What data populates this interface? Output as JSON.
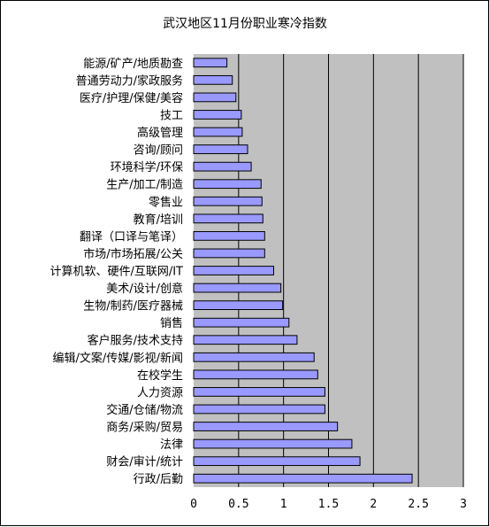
{
  "chart_data": {
    "type": "bar",
    "orientation": "horizontal",
    "title": "武汉地区11月份职业寒冷指数",
    "xlabel": "",
    "ylabel": "",
    "xlim": [
      0,
      3
    ],
    "x_ticks": [
      "0",
      "0.5",
      "1",
      "1.5",
      "2",
      "2.5",
      "3"
    ],
    "grid": "vertical lines at each major tick",
    "colors": {
      "plot_background": "#c0c0c0",
      "bar_fill": "#9999ff",
      "bar_stroke": "#000000",
      "gridline": "#000000"
    },
    "categories": [
      "能源/矿产/地质勘查",
      "普通劳动力/家政服务",
      "医疗/护理/保健/美容",
      "技工",
      "高级管理",
      "咨询/顾问",
      "环境科学/环保",
      "生产/加工/制造",
      "零售业",
      "教育/培训",
      "翻译（口译与笔译）",
      "市场/市场拓展/公关",
      "计算机软、硬件/互联网/IT",
      "美术/设计/创意",
      "生物/制药/医疗器械",
      "销售",
      "客户服务/技术支持",
      "编辑/文案/传媒/影视/新闻",
      "在校学生",
      "人力资源",
      "交通/仓储/物流",
      "商务/采购/贸易",
      "法律",
      "财会/审计/统计",
      "行政/后勤"
    ],
    "values": [
      0.37,
      0.43,
      0.47,
      0.53,
      0.54,
      0.6,
      0.64,
      0.75,
      0.76,
      0.77,
      0.79,
      0.79,
      0.89,
      0.97,
      0.99,
      1.06,
      1.15,
      1.34,
      1.38,
      1.46,
      1.46,
      1.6,
      1.76,
      1.85,
      2.43
    ]
  }
}
